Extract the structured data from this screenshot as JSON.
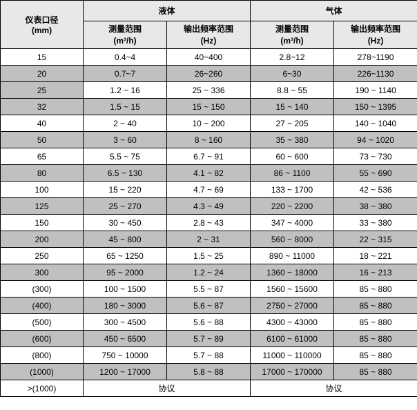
{
  "header": {
    "diameter_label": "仪表口径",
    "diameter_unit": "(mm)",
    "liquid_label": "液体",
    "gas_label": "气体",
    "measure_range_label": "测量范围",
    "measure_range_unit": "(m³/h)",
    "freq_range_label": "输出频率范围",
    "freq_range_unit": "(Hz)"
  },
  "rows": [
    {
      "diameter": "15",
      "liquid_measure": "0.4~4",
      "liquid_freq": "40~400",
      "gas_measure": "2.8~12",
      "gas_freq": "278~1190",
      "shade": "plain",
      "first_shade": false
    },
    {
      "diameter": "20",
      "liquid_measure": "0.7~7",
      "liquid_freq": "26~260",
      "gas_measure": "6~30",
      "gas_freq": "226~1130",
      "shade": "shaded",
      "first_shade": true
    },
    {
      "diameter": "25",
      "liquid_measure": "1.2 ~ 16",
      "liquid_freq": "25 ~ 336",
      "gas_measure": "8.8 ~ 55",
      "gas_freq": "190 ~ 1140",
      "shade": "plain",
      "first_shade": true
    },
    {
      "diameter": "32",
      "liquid_measure": "1.5 ~ 15",
      "liquid_freq": "15 ~ 150",
      "gas_measure": "15 ~ 140",
      "gas_freq": "150 ~ 1395",
      "shade": "shaded",
      "first_shade": true
    },
    {
      "diameter": "40",
      "liquid_measure": "2 ~ 40",
      "liquid_freq": "10 ~ 200",
      "gas_measure": "27 ~ 205",
      "gas_freq": "140 ~ 1040",
      "shade": "plain",
      "first_shade": false
    },
    {
      "diameter": "50",
      "liquid_measure": "3 ~ 60",
      "liquid_freq": "8 ~ 160",
      "gas_measure": "35 ~ 380",
      "gas_freq": "94 ~ 1020",
      "shade": "shaded",
      "first_shade": true
    },
    {
      "diameter": "65",
      "liquid_measure": "5.5 ~ 75",
      "liquid_freq": "6.7 ~ 91",
      "gas_measure": "60 ~ 600",
      "gas_freq": "73 ~ 730",
      "shade": "plain",
      "first_shade": false
    },
    {
      "diameter": "80",
      "liquid_measure": "6.5 ~ 130",
      "liquid_freq": "4.1 ~ 82",
      "gas_measure": "86 ~ 1100",
      "gas_freq": "55 ~ 690",
      "shade": "shaded",
      "first_shade": true
    },
    {
      "diameter": "100",
      "liquid_measure": "15 ~ 220",
      "liquid_freq": "4.7 ~ 69",
      "gas_measure": "133 ~ 1700",
      "gas_freq": "42 ~ 536",
      "shade": "plain",
      "first_shade": false
    },
    {
      "diameter": "125",
      "liquid_measure": "25 ~ 270",
      "liquid_freq": "4.3 ~ 49",
      "gas_measure": "220 ~ 2200",
      "gas_freq": "38 ~ 380",
      "shade": "shaded",
      "first_shade": true
    },
    {
      "diameter": "150",
      "liquid_measure": "30 ~ 450",
      "liquid_freq": "2.8 ~ 43",
      "gas_measure": "347 ~ 4000",
      "gas_freq": "33 ~ 380",
      "shade": "plain",
      "first_shade": false
    },
    {
      "diameter": "200",
      "liquid_measure": "45 ~ 800",
      "liquid_freq": "2 ~ 31",
      "gas_measure": "560 ~ 8000",
      "gas_freq": "22 ~ 315",
      "shade": "shaded",
      "first_shade": true
    },
    {
      "diameter": "250",
      "liquid_measure": "65 ~ 1250",
      "liquid_freq": "1.5 ~ 25",
      "gas_measure": "890 ~ 11000",
      "gas_freq": "18 ~ 221",
      "shade": "plain",
      "first_shade": false
    },
    {
      "diameter": "300",
      "liquid_measure": "95 ~ 2000",
      "liquid_freq": "1.2 ~ 24",
      "gas_measure": "1360 ~ 18000",
      "gas_freq": "16 ~ 213",
      "shade": "shaded",
      "first_shade": true
    },
    {
      "diameter": "(300)",
      "liquid_measure": "100 ~ 1500",
      "liquid_freq": "5.5 ~ 87",
      "gas_measure": "1560 ~ 15600",
      "gas_freq": "85 ~ 880",
      "shade": "plain",
      "first_shade": false
    },
    {
      "diameter": "(400)",
      "liquid_measure": "180 ~ 3000",
      "liquid_freq": "5.6 ~ 87",
      "gas_measure": "2750 ~ 27000",
      "gas_freq": "85 ~ 880",
      "shade": "shaded",
      "first_shade": true
    },
    {
      "diameter": "(500)",
      "liquid_measure": "300 ~ 4500",
      "liquid_freq": "5.6 ~ 88",
      "gas_measure": "4300 ~ 43000",
      "gas_freq": "85 ~ 880",
      "shade": "plain",
      "first_shade": false
    },
    {
      "diameter": "(600)",
      "liquid_measure": "450 ~ 6500",
      "liquid_freq": "5.7 ~ 89",
      "gas_measure": "6100 ~ 61000",
      "gas_freq": "85 ~ 880",
      "shade": "shaded",
      "first_shade": true
    },
    {
      "diameter": "(800)",
      "liquid_measure": "750 ~ 10000",
      "liquid_freq": "5.7 ~ 88",
      "gas_measure": "11000 ~ 110000",
      "gas_freq": "85 ~ 880",
      "shade": "plain",
      "first_shade": false
    },
    {
      "diameter": "(1000)",
      "liquid_measure": "1200 ~ 17000",
      "liquid_freq": "5.8 ~ 88",
      "gas_measure": "17000 ~ 170000",
      "gas_freq": "85 ~ 880",
      "shade": "shaded",
      "first_shade": true
    },
    {
      "diameter": ">(1000)",
      "liquid_measure": "协议",
      "liquid_freq": "",
      "gas_measure": "协议",
      "gas_freq": "",
      "shade": "plain",
      "first_shade": false,
      "colspan": true
    }
  ],
  "colors": {
    "header_bg": "#e8e8e8",
    "shaded_bg": "#c0c0c0",
    "plain_bg": "#ffffff",
    "border": "#000000",
    "text": "#000000"
  }
}
